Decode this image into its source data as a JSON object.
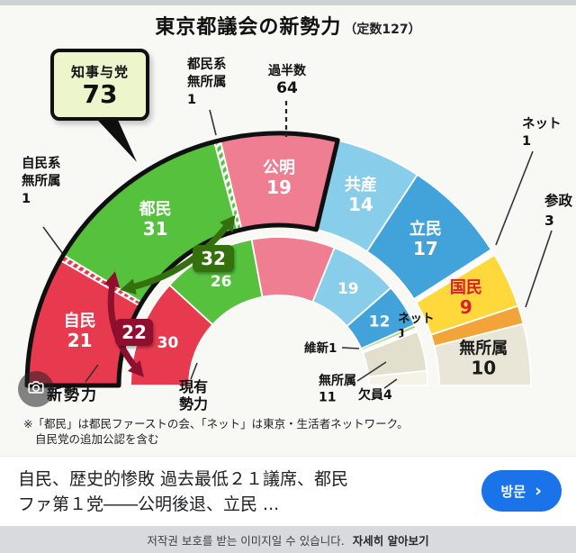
{
  "chart_data": {
    "type": "half-donut",
    "title": "東京都議会の新勢力",
    "subtitle": "（定数127）",
    "total_seats": 127,
    "majority": {
      "label": "過半数",
      "value": "64"
    },
    "coalition": {
      "label": "知事与党",
      "seats": 73
    },
    "rings": [
      {
        "id": "outer",
        "name": "新勢力",
        "radius": [
          178,
          280
        ],
        "segments": [
          {
            "party": "自民",
            "seats": 21,
            "color": "#e73a4e",
            "display": "segment",
            "text_color": "#ffffff"
          },
          {
            "party": "自民系無所属",
            "seats": 1,
            "color": "hatch-red",
            "display": "callout",
            "callout_lines": [
              "自民系",
              "無所属",
              "1"
            ]
          },
          {
            "party": "都民",
            "seats": 31,
            "color": "#56c13d",
            "display": "segment",
            "text_color": "#ffffff"
          },
          {
            "party": "都民系無所属",
            "seats": 1,
            "color": "hatch-green",
            "display": "callout",
            "callout_lines": [
              "都民系",
              "無所属",
              "1"
            ]
          },
          {
            "party": "公明",
            "seats": 19,
            "color": "#ef7e92",
            "display": "segment",
            "text_color": "#ffffff"
          },
          {
            "party": "共産",
            "seats": 14,
            "color": "#88cde9",
            "display": "segment",
            "text_color": "#ffffff"
          },
          {
            "party": "立民",
            "seats": 17,
            "color": "#42a3da",
            "display": "segment",
            "text_color": "#ffffff"
          },
          {
            "party": "ネット",
            "seats": 1,
            "color": "#ffffff",
            "display": "callout",
            "callout_lines": [
              "ネット",
              "1"
            ]
          },
          {
            "party": "国民",
            "seats": 9,
            "color": "#ffd83c",
            "display": "segment",
            "text_color": "#d9202f"
          },
          {
            "party": "参政",
            "seats": 3,
            "color": "#f2a438",
            "display": "callout",
            "callout_lines": [
              "参政",
              "3"
            ]
          },
          {
            "party": "無所属",
            "seats": 10,
            "color": "#e9e6d7",
            "display": "segment",
            "text_color": "#1a1a1a"
          }
        ]
      },
      {
        "id": "inner",
        "name": "現有勢力",
        "radius": [
          100,
          165
        ],
        "segments": [
          {
            "party": "自民",
            "seats": 30,
            "color": "#e73a4e",
            "display": "number",
            "text_color": "#ffffff"
          },
          {
            "party": "都民",
            "seats": 26,
            "color": "#56c13d",
            "display": "number",
            "text_color": "#ffffff"
          },
          {
            "party": "公明",
            "seats": 23,
            "color": "#ef7e92",
            "display": "none"
          },
          {
            "party": "共産",
            "seats": 19,
            "color": "#88cde9",
            "display": "number",
            "text_color": "#ffffff"
          },
          {
            "party": "立民",
            "seats": 12,
            "color": "#42a3da",
            "display": "number",
            "text_color": "#ffffff"
          },
          {
            "party": "維新",
            "seats": 1,
            "color": "#a4d478",
            "display": "callout",
            "callout_lines": [
              "維新1"
            ]
          },
          {
            "party": "ネット",
            "seats": 1,
            "color": "#ffffff",
            "display": "callout",
            "callout_lines": [
              "ネット",
              "1"
            ]
          },
          {
            "party": "無所属",
            "seats": 11,
            "color": "#e2dfcc",
            "display": "callout",
            "callout_lines": [
              "無所属",
              "11"
            ]
          },
          {
            "party": "欠員",
            "seats": 4,
            "color": "#f5f3e7",
            "display": "callout",
            "callout_lines": [
              "欠員4"
            ]
          }
        ]
      }
    ],
    "ring_labels": [
      {
        "ring": "outer",
        "lines": [
          "新勢力"
        ]
      },
      {
        "ring": "inner",
        "lines": [
          "現有",
          "勢力"
        ]
      }
    ],
    "change_badges": [
      {
        "party": "都民",
        "value": "32",
        "color": "#35700f"
      },
      {
        "party": "自民",
        "value": "22",
        "color": "#8e0f2e"
      }
    ],
    "footnote_lines": [
      "※「都民」は都民ファーストの会、「ネット」は東京・生活者ネットワーク。",
      "自民党の追加公認を含む"
    ]
  },
  "result": {
    "headline_lines": [
      "自民、歴史的惨敗 過去最低２１議席、都民",
      "ファ第１党――公明後退、立民 ..."
    ],
    "visit_label": "방문",
    "chevron": "›",
    "button_color": "#1a73e8"
  },
  "copyright": {
    "notice": "저작권 보호를 받는 이미지일 수 있습니다.",
    "link": "자세히 알아보기"
  }
}
